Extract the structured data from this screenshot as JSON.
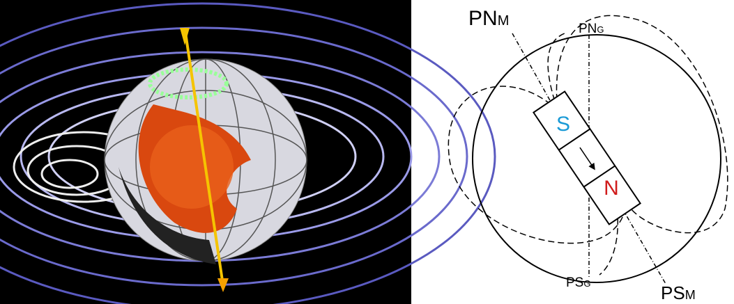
{
  "labels": {
    "pn_m": {
      "main": "PN",
      "sub": "M"
    },
    "pn_g": {
      "main": "PN",
      "sub": "G"
    },
    "ps_g": {
      "main": "PS",
      "sub": "G"
    },
    "ps_m": {
      "main": "PS",
      "sub": "M"
    }
  },
  "magnet": {
    "south": "S",
    "north": "N"
  }
}
